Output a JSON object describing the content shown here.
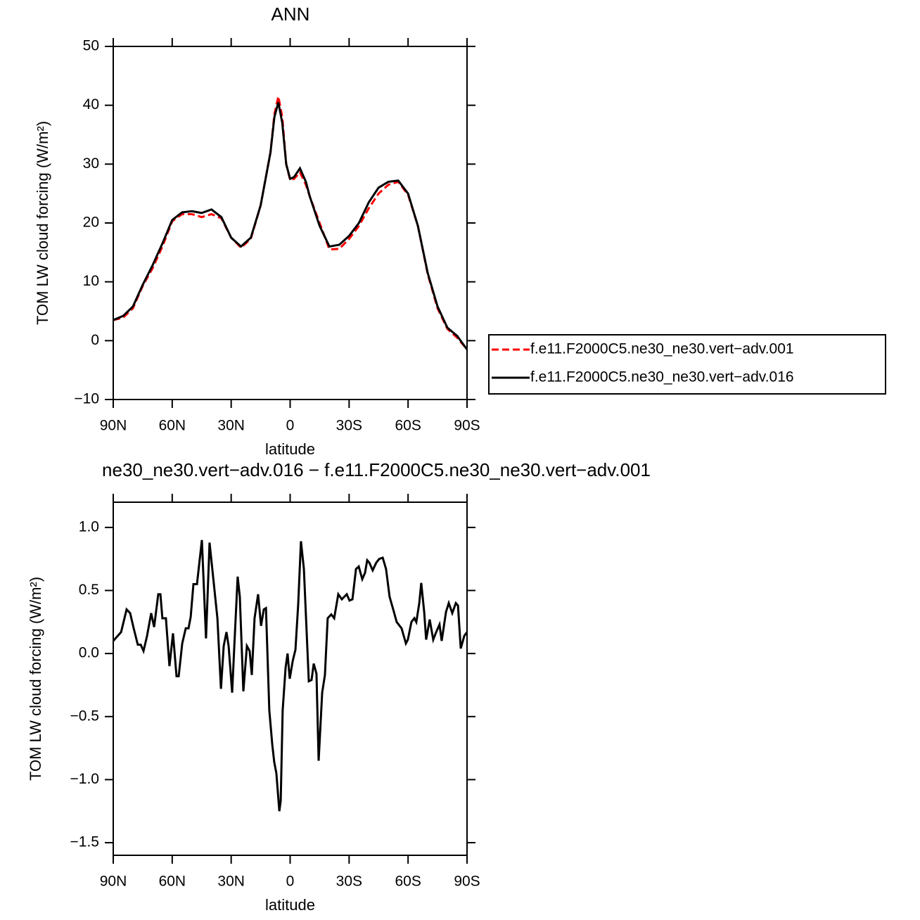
{
  "chart_data": [
    {
      "type": "line",
      "title": "ANN",
      "xlabel": "latitude",
      "ylabel": "TOM LW cloud forcing (W/m²)",
      "x": [
        90,
        85,
        80,
        75,
        70,
        65,
        60,
        55,
        50,
        45,
        40,
        35,
        30,
        25,
        20,
        15,
        10,
        8,
        6,
        4,
        2,
        0,
        -2,
        -5,
        -8,
        -10,
        -15,
        -20,
        -25,
        -30,
        -35,
        -40,
        -45,
        -50,
        -55,
        -60,
        -65,
        -70,
        -75,
        -80,
        -85,
        -90
      ],
      "series": [
        {
          "name": "f.e11.F2000C5.ne30_ne30.vert−adv.001",
          "color": "#ff0000",
          "dashed": true,
          "values": [
            3.5,
            3.9,
            5.5,
            9.3,
            12.3,
            16,
            20.3,
            21.5,
            21.5,
            21,
            21.5,
            20.8,
            17.5,
            15.8,
            17.3,
            23,
            32,
            38.5,
            41.5,
            38,
            30,
            27.3,
            27.5,
            28.6,
            26.5,
            24.5,
            20,
            15.5,
            15.6,
            17.3,
            19.5,
            22.5,
            25,
            26.5,
            27,
            24.8,
            19.5,
            11.3,
            5.5,
            2,
            0.5,
            -1.5
          ]
        },
        {
          "name": "f.e11.F2000C5.ne30_ne30.vert−adv.016",
          "color": "#000000",
          "dashed": false,
          "values": [
            3.5,
            4.2,
            5.8,
            9.5,
            12.8,
            16.5,
            20.5,
            21.8,
            22,
            21.7,
            22.3,
            21,
            17.5,
            16,
            17.5,
            23,
            32,
            38,
            40.5,
            37,
            30,
            27.5,
            27.8,
            29.3,
            27,
            24.5,
            19.5,
            16,
            16.3,
            17.8,
            20,
            23.5,
            26,
            27,
            27.2,
            25,
            19.5,
            11.5,
            5.8,
            2.2,
            0.8,
            -1.5
          ]
        }
      ],
      "xlim": [
        90,
        -90
      ],
      "xticks": [
        {
          "value": 90,
          "label": "90N"
        },
        {
          "value": 60,
          "label": "60N"
        },
        {
          "value": 30,
          "label": "30N"
        },
        0,
        {
          "value": -30,
          "label": "30S"
        },
        {
          "value": -60,
          "label": "60S"
        },
        {
          "value": -90,
          "label": "90S"
        }
      ],
      "ylim": [
        -10,
        50
      ],
      "yticks": [
        {
          "value": -10,
          "label": "−10"
        },
        0,
        10,
        20,
        30,
        40,
        50
      ],
      "legend": "right"
    },
    {
      "type": "line",
      "title": "ne30_ne30.vert−adv.016 − f.e11.F2000C5.ne30_ne30.vert−adv.001",
      "xlabel": "latitude",
      "ylabel": "TOM LW cloud forcing (W/m²)",
      "x": [
        90,
        86,
        83.2,
        81.4,
        79.6,
        77.5,
        76,
        74.6,
        72.8,
        70.7,
        69.2,
        67.1,
        66,
        65,
        63.2,
        61.4,
        59.6,
        57.8,
        56.7,
        54.9,
        53.1,
        51.7,
        50.6,
        49.2,
        47.4,
        44.9,
        42.8,
        41,
        39.2,
        37,
        35.2,
        33.8,
        32.4,
        31.3,
        29.5,
        28.4,
        26.7,
        25.6,
        23.8,
        22,
        20.6,
        19.5,
        18.1,
        16.3,
        14.8,
        13.4,
        12.3,
        10.6,
        9.1,
        8.1,
        7,
        5.5,
        4.8,
        3.8,
        2.3,
        1.3,
        0.2,
        -1.3,
        -2.7,
        -4.1,
        -5.5,
        -7,
        -8.4,
        -9.5,
        -10.9,
        -12,
        -13.4,
        -14.5,
        -16.3,
        -17.7,
        -19.1,
        -20.9,
        -22.4,
        -24.5,
        -26.3,
        -28.8,
        -30.2,
        -31.7,
        -33.5,
        -34.9,
        -36.7,
        -38.1,
        -39.2,
        -40.3,
        -42,
        -43.8,
        -45.3,
        -47.1,
        -48.8,
        -50.6,
        -52.8,
        -54.2,
        -56.7,
        -58.9,
        -59.9,
        -61.7,
        -63.2,
        -64.2,
        -65.7,
        -66.7,
        -68.2,
        -69.2,
        -71,
        -72.8,
        -74.3,
        -76,
        -77.1,
        -79.3,
        -80.7,
        -82.5,
        -84.3,
        -85.4,
        -86.8,
        -88.6,
        -90
      ],
      "series": [
        {
          "name": null,
          "color": "#000000",
          "dashed": false,
          "values": [
            0.1,
            0.17,
            0.35,
            0.32,
            0.2,
            0.07,
            0.07,
            0.02,
            0.14,
            0.32,
            0.21,
            0.47,
            0.47,
            0.28,
            0.28,
            -0.1,
            0.16,
            -0.18,
            -0.18,
            0.08,
            0.2,
            0.2,
            0.29,
            0.55,
            0.55,
            0.9,
            0.12,
            0.88,
            0.61,
            0.28,
            -0.28,
            0.06,
            0.17,
            0.06,
            -0.31,
            0.06,
            0.61,
            0.45,
            -0.3,
            0.06,
            0.02,
            -0.17,
            0.28,
            0.47,
            0.22,
            0.35,
            0.36,
            -0.45,
            -0.72,
            -0.86,
            -0.95,
            -1.25,
            -1.17,
            -0.45,
            -0.11,
            0.0,
            -0.2,
            -0.06,
            0.03,
            0.39,
            0.89,
            0.67,
            0.17,
            -0.22,
            -0.21,
            -0.08,
            -0.16,
            -0.85,
            -0.31,
            -0.17,
            0.28,
            0.31,
            0.28,
            0.47,
            0.43,
            0.47,
            0.42,
            0.43,
            0.67,
            0.69,
            0.59,
            0.64,
            0.74,
            0.72,
            0.66,
            0.72,
            0.75,
            0.76,
            0.67,
            0.45,
            0.33,
            0.25,
            0.2,
            0.08,
            0.11,
            0.25,
            0.28,
            0.25,
            0.4,
            0.56,
            0.33,
            0.11,
            0.27,
            0.11,
            0.17,
            0.23,
            0.1,
            0.33,
            0.4,
            0.32,
            0.4,
            0.38,
            0.04,
            0.14,
            0.17
          ]
        }
      ],
      "xlim": [
        90,
        -90
      ],
      "xticks": [
        {
          "value": 90,
          "label": "90N"
        },
        {
          "value": 60,
          "label": "60N"
        },
        {
          "value": 30,
          "label": "30N"
        },
        0,
        {
          "value": -30,
          "label": "30S"
        },
        {
          "value": -60,
          "label": "60S"
        },
        {
          "value": -90,
          "label": "90S"
        }
      ],
      "ylim": [
        -1.6,
        1.2
      ],
      "yticks": [
        {
          "value": -1.5,
          "label": "−1.5"
        },
        {
          "value": -1,
          "label": "−1.0"
        },
        {
          "value": -0.5,
          "label": "−0.5"
        },
        {
          "value": 0,
          "label": "0.0"
        },
        0.5,
        {
          "value": 1,
          "label": "1.0"
        }
      ]
    }
  ]
}
